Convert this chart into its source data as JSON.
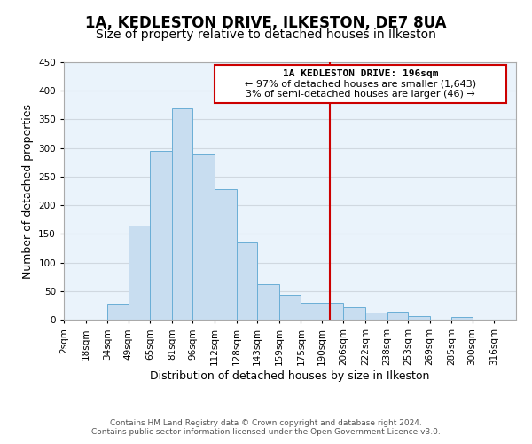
{
  "title": "1A, KEDLESTON DRIVE, ILKESTON, DE7 8UA",
  "subtitle": "Size of property relative to detached houses in Ilkeston",
  "xlabel": "Distribution of detached houses by size in Ilkeston",
  "ylabel": "Number of detached properties",
  "bar_left_edges": [
    18,
    34,
    49,
    65,
    81,
    96,
    112,
    128,
    143,
    159,
    175,
    206,
    222,
    238,
    253,
    269,
    285,
    300
  ],
  "bar_heights": [
    0,
    28,
    165,
    295,
    370,
    290,
    228,
    135,
    62,
    43,
    30,
    22,
    13,
    14,
    6,
    0,
    5,
    0
  ],
  "bar_widths": [
    16,
    15,
    16,
    16,
    15,
    16,
    16,
    15,
    16,
    16,
    31,
    16,
    16,
    15,
    16,
    16,
    15,
    16
  ],
  "bar_color": "#c8ddf0",
  "bar_edgecolor": "#6aaed6",
  "xtick_labels": [
    "2sqm",
    "18sqm",
    "34sqm",
    "49sqm",
    "65sqm",
    "81sqm",
    "96sqm",
    "112sqm",
    "128sqm",
    "143sqm",
    "159sqm",
    "175sqm",
    "190sqm",
    "206sqm",
    "222sqm",
    "238sqm",
    "253sqm",
    "269sqm",
    "285sqm",
    "300sqm",
    "316sqm"
  ],
  "xtick_positions": [
    2,
    18,
    34,
    49,
    65,
    81,
    96,
    112,
    128,
    143,
    159,
    175,
    190,
    206,
    222,
    238,
    253,
    269,
    285,
    300,
    316
  ],
  "ylim": [
    0,
    450
  ],
  "xlim": [
    2,
    332
  ],
  "vertical_line_x": 196,
  "vertical_line_color": "#cc0000",
  "annotation_title": "1A KEDLESTON DRIVE: 196sqm",
  "annotation_line1": "← 97% of detached houses are smaller (1,643)",
  "annotation_line2": "3% of semi-detached houses are larger (46) →",
  "grid_color": "#d0d8e0",
  "background_color": "#eaf3fb",
  "footer_line1": "Contains HM Land Registry data © Crown copyright and database right 2024.",
  "footer_line2": "Contains public sector information licensed under the Open Government Licence v3.0.",
  "title_fontsize": 12,
  "subtitle_fontsize": 10,
  "axis_label_fontsize": 9,
  "tick_fontsize": 7.5,
  "annotation_fontsize": 8,
  "footer_fontsize": 6.5
}
